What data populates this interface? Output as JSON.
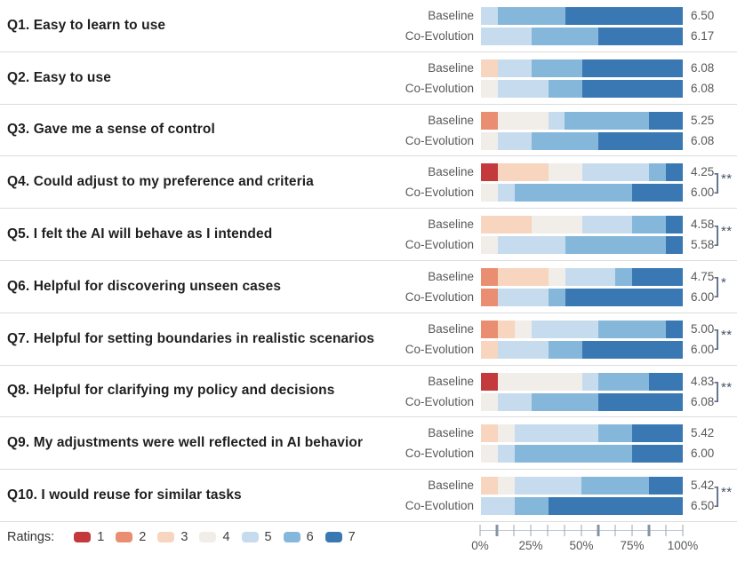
{
  "chart_data": {
    "type": "diverging_stacked_bar_likert",
    "title": "",
    "legend": {
      "label": "Ratings:",
      "levels": [
        "1",
        "2",
        "3",
        "4",
        "5",
        "6",
        "7"
      ]
    },
    "rating_colors": {
      "1": "#c4393c",
      "2": "#e98e70",
      "3": "#f7d5bf",
      "4": "#f1ede8",
      "5": "#c6dcee",
      "6": "#85b7da",
      "7": "#3a78b3"
    },
    "conditions": [
      "Baseline",
      "Co-Evolution"
    ],
    "axis": {
      "range_pct": [
        0,
        100
      ],
      "tick_count": 13,
      "emphasized_ticks": [
        1,
        7,
        10
      ],
      "labels": [
        "0%",
        "25%",
        "50%",
        "75%",
        "100%"
      ]
    },
    "questions": [
      {
        "label": "Q1. Easy to learn to use",
        "sig": "",
        "rows": [
          {
            "condition": "Baseline",
            "mean": "6.50",
            "segments": [
              {
                "rating": "5",
                "pct": 8.3
              },
              {
                "rating": "6",
                "pct": 33.3
              },
              {
                "rating": "7",
                "pct": 58.3
              }
            ]
          },
          {
            "condition": "Co-Evolution",
            "mean": "6.17",
            "segments": [
              {
                "rating": "5",
                "pct": 25
              },
              {
                "rating": "6",
                "pct": 33.3
              },
              {
                "rating": "7",
                "pct": 41.7
              }
            ]
          }
        ]
      },
      {
        "label": "Q2. Easy to use",
        "sig": "",
        "rows": [
          {
            "condition": "Baseline",
            "mean": "6.08",
            "segments": [
              {
                "rating": "3",
                "pct": 8.3
              },
              {
                "rating": "5",
                "pct": 16.7
              },
              {
                "rating": "6",
                "pct": 25
              },
              {
                "rating": "7",
                "pct": 50
              }
            ]
          },
          {
            "condition": "Co-Evolution",
            "mean": "6.08",
            "segments": [
              {
                "rating": "4",
                "pct": 8.3
              },
              {
                "rating": "5",
                "pct": 25
              },
              {
                "rating": "6",
                "pct": 16.7
              },
              {
                "rating": "7",
                "pct": 50
              }
            ]
          }
        ]
      },
      {
        "label": "Q3. Gave me a sense of control",
        "sig": "",
        "rows": [
          {
            "condition": "Baseline",
            "mean": "5.25",
            "segments": [
              {
                "rating": "2",
                "pct": 8.3
              },
              {
                "rating": "4",
                "pct": 25
              },
              {
                "rating": "5",
                "pct": 8.3
              },
              {
                "rating": "6",
                "pct": 41.7
              },
              {
                "rating": "7",
                "pct": 16.7
              }
            ]
          },
          {
            "condition": "Co-Evolution",
            "mean": "6.08",
            "segments": [
              {
                "rating": "4",
                "pct": 8.3
              },
              {
                "rating": "5",
                "pct": 16.7
              },
              {
                "rating": "6",
                "pct": 33.3
              },
              {
                "rating": "7",
                "pct": 41.7
              }
            ]
          }
        ]
      },
      {
        "label": "Q4. Could adjust to my preference and criteria",
        "sig": "**",
        "rows": [
          {
            "condition": "Baseline",
            "mean": "4.25",
            "segments": [
              {
                "rating": "1",
                "pct": 8.3
              },
              {
                "rating": "3",
                "pct": 25
              },
              {
                "rating": "4",
                "pct": 16.7
              },
              {
                "rating": "5",
                "pct": 33.3
              },
              {
                "rating": "6",
                "pct": 8.3
              },
              {
                "rating": "7",
                "pct": 8.3
              }
            ]
          },
          {
            "condition": "Co-Evolution",
            "mean": "6.00",
            "segments": [
              {
                "rating": "4",
                "pct": 8.3
              },
              {
                "rating": "5",
                "pct": 8.3
              },
              {
                "rating": "6",
                "pct": 58.3
              },
              {
                "rating": "7",
                "pct": 25
              }
            ]
          }
        ]
      },
      {
        "label": "Q5. I felt the AI will behave as I intended",
        "sig": "**",
        "rows": [
          {
            "condition": "Baseline",
            "mean": "4.58",
            "segments": [
              {
                "rating": "3",
                "pct": 25
              },
              {
                "rating": "4",
                "pct": 25
              },
              {
                "rating": "5",
                "pct": 25
              },
              {
                "rating": "6",
                "pct": 16.7
              },
              {
                "rating": "7",
                "pct": 8.3
              }
            ]
          },
          {
            "condition": "Co-Evolution",
            "mean": "5.58",
            "segments": [
              {
                "rating": "4",
                "pct": 8.3
              },
              {
                "rating": "5",
                "pct": 33.3
              },
              {
                "rating": "6",
                "pct": 50
              },
              {
                "rating": "7",
                "pct": 8.3
              }
            ]
          }
        ]
      },
      {
        "label": "Q6. Helpful for discovering unseen cases",
        "sig": "*",
        "rows": [
          {
            "condition": "Baseline",
            "mean": "4.75",
            "segments": [
              {
                "rating": "2",
                "pct": 8.3
              },
              {
                "rating": "3",
                "pct": 25
              },
              {
                "rating": "4",
                "pct": 8.3
              },
              {
                "rating": "5",
                "pct": 25
              },
              {
                "rating": "6",
                "pct": 8.3
              },
              {
                "rating": "7",
                "pct": 25
              }
            ]
          },
          {
            "condition": "Co-Evolution",
            "mean": "6.00",
            "segments": [
              {
                "rating": "2",
                "pct": 8.3
              },
              {
                "rating": "5",
                "pct": 25
              },
              {
                "rating": "6",
                "pct": 8.3
              },
              {
                "rating": "7",
                "pct": 58.3
              }
            ]
          }
        ]
      },
      {
        "label": "Q7. Helpful for setting boundaries in realistic scenarios",
        "sig": "**",
        "rows": [
          {
            "condition": "Baseline",
            "mean": "5.00",
            "segments": [
              {
                "rating": "2",
                "pct": 8.3
              },
              {
                "rating": "3",
                "pct": 8.3
              },
              {
                "rating": "4",
                "pct": 8.3
              },
              {
                "rating": "5",
                "pct": 33.3
              },
              {
                "rating": "6",
                "pct": 33.3
              },
              {
                "rating": "7",
                "pct": 8.3
              }
            ]
          },
          {
            "condition": "Co-Evolution",
            "mean": "6.00",
            "segments": [
              {
                "rating": "3",
                "pct": 8.3
              },
              {
                "rating": "5",
                "pct": 25
              },
              {
                "rating": "6",
                "pct": 16.7
              },
              {
                "rating": "7",
                "pct": 50
              }
            ]
          }
        ]
      },
      {
        "label": "Q8. Helpful for clarifying my policy and decisions",
        "sig": "**",
        "rows": [
          {
            "condition": "Baseline",
            "mean": "4.83",
            "segments": [
              {
                "rating": "1",
                "pct": 8.3
              },
              {
                "rating": "4",
                "pct": 41.7
              },
              {
                "rating": "5",
                "pct": 8.3
              },
              {
                "rating": "6",
                "pct": 25
              },
              {
                "rating": "7",
                "pct": 16.7
              }
            ]
          },
          {
            "condition": "Co-Evolution",
            "mean": "6.08",
            "segments": [
              {
                "rating": "4",
                "pct": 8.3
              },
              {
                "rating": "5",
                "pct": 16.7
              },
              {
                "rating": "6",
                "pct": 33.3
              },
              {
                "rating": "7",
                "pct": 41.7
              }
            ]
          }
        ]
      },
      {
        "label": "Q9. My adjustments were well reflected in AI behavior",
        "sig": "",
        "rows": [
          {
            "condition": "Baseline",
            "mean": "5.42",
            "segments": [
              {
                "rating": "3",
                "pct": 8.3
              },
              {
                "rating": "4",
                "pct": 8.3
              },
              {
                "rating": "5",
                "pct": 41.7
              },
              {
                "rating": "6",
                "pct": 16.7
              },
              {
                "rating": "7",
                "pct": 25
              }
            ]
          },
          {
            "condition": "Co-Evolution",
            "mean": "6.00",
            "segments": [
              {
                "rating": "4",
                "pct": 8.3
              },
              {
                "rating": "5",
                "pct": 8.3
              },
              {
                "rating": "6",
                "pct": 58.3
              },
              {
                "rating": "7",
                "pct": 25
              }
            ]
          }
        ]
      },
      {
        "label": "Q10. I would reuse for similar tasks",
        "sig": "**",
        "rows": [
          {
            "condition": "Baseline",
            "mean": "5.42",
            "segments": [
              {
                "rating": "3",
                "pct": 8.3
              },
              {
                "rating": "4",
                "pct": 8.3
              },
              {
                "rating": "5",
                "pct": 33.3
              },
              {
                "rating": "6",
                "pct": 33.3
              },
              {
                "rating": "7",
                "pct": 16.7
              }
            ]
          },
          {
            "condition": "Co-Evolution",
            "mean": "6.50",
            "segments": [
              {
                "rating": "5",
                "pct": 16.7
              },
              {
                "rating": "6",
                "pct": 16.7
              },
              {
                "rating": "7",
                "pct": 66.7
              }
            ]
          }
        ]
      }
    ]
  }
}
